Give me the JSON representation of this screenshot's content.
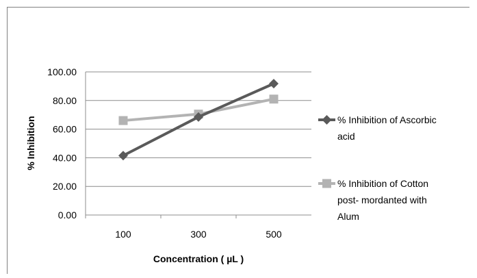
{
  "chart_data": {
    "type": "line",
    "categories": [
      "100",
      "300",
      "500"
    ],
    "series": [
      {
        "name": "% Inhibition of Ascorbic acid",
        "name_lines": [
          "% Inhibition of Ascorbic",
          "acid"
        ],
        "values": [
          41.5,
          68.5,
          91.8
        ],
        "color": "#5a5a5a",
        "marker": "diamond"
      },
      {
        "name": "% Inhibition of Cotton post- mordanted with Alum",
        "name_lines": [
          "% Inhibition of Cotton",
          "post- mordanted with",
          "Alum"
        ],
        "values": [
          66.0,
          70.5,
          81.0
        ],
        "color": "#b3b3b3",
        "marker": "square"
      }
    ],
    "xlabel": "Concentration ( µL )",
    "ylabel": "% Inhibition",
    "ylim": [
      0,
      100
    ],
    "yticks": [
      "0.00",
      "20.00",
      "40.00",
      "60.00",
      "80.00",
      "100.00"
    ],
    "grid": true,
    "legend_position": "right"
  }
}
